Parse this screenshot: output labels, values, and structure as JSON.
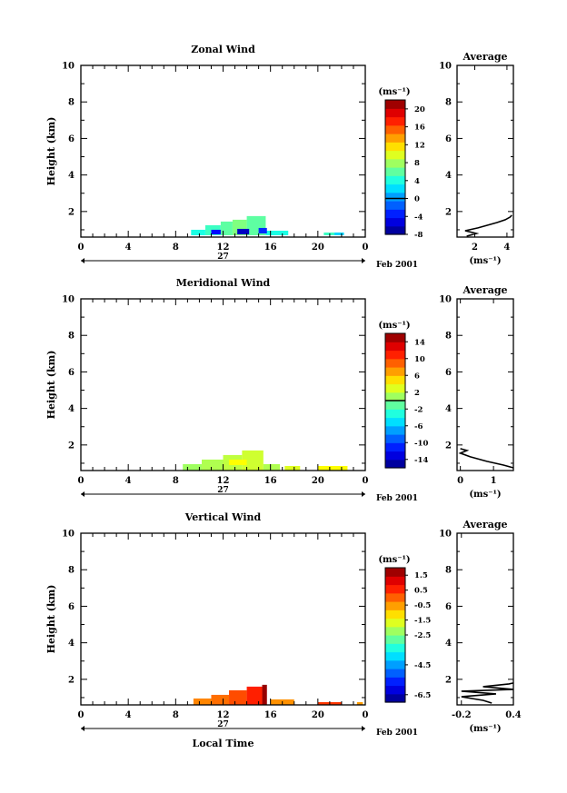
{
  "chart_data": [
    {
      "type": "heatmap",
      "title": "Zonal Wind",
      "xlabel": "",
      "ylabel": "Height (km)",
      "date_label": "27",
      "month_label": "Feb 2001",
      "xlim": [
        0,
        24
      ],
      "ylim": [
        0.6,
        10
      ],
      "x_ticks": [
        "0",
        "4",
        "8",
        "12",
        "16",
        "20",
        "0"
      ],
      "y_ticks": [
        "2",
        "4",
        "6",
        "8",
        "10"
      ],
      "colorbar": {
        "unit": "(ms⁻¹)",
        "range": [
          -8,
          22
        ],
        "tick_values": [
          -8,
          -4,
          0,
          4,
          8,
          12,
          16,
          20
        ],
        "tick_labels": [
          "-8",
          "-4",
          "0",
          "4",
          "8",
          "12",
          "16",
          "20"
        ],
        "zero_line": 0
      },
      "cells": [
        {
          "x0": 9.3,
          "x1": 10.5,
          "y0": 0.7,
          "y1": 1.0,
          "v": 4
        },
        {
          "x0": 10.5,
          "x1": 11.8,
          "y0": 0.7,
          "y1": 1.25,
          "v": 5
        },
        {
          "x0": 11.8,
          "x1": 12.8,
          "y0": 0.7,
          "y1": 1.45,
          "v": 6
        },
        {
          "x0": 12.8,
          "x1": 14.0,
          "y0": 0.7,
          "y1": 1.55,
          "v": 7
        },
        {
          "x0": 14.0,
          "x1": 15.6,
          "y0": 0.7,
          "y1": 1.75,
          "v": 6
        },
        {
          "x0": 15.6,
          "x1": 17.5,
          "y0": 0.7,
          "y1": 0.95,
          "v": 4
        },
        {
          "x0": 20.5,
          "x1": 21.4,
          "y0": 0.7,
          "y1": 0.85,
          "v": 5
        },
        {
          "x0": 21.4,
          "x1": 22.2,
          "y0": 0.7,
          "y1": 0.85,
          "v": 2
        },
        {
          "x0": 11.0,
          "x1": 11.8,
          "y0": 0.75,
          "y1": 1.0,
          "v": -4
        },
        {
          "x0": 13.2,
          "x1": 14.2,
          "y0": 0.75,
          "y1": 1.05,
          "v": -6
        },
        {
          "x0": 15.0,
          "x1": 15.7,
          "y0": 0.8,
          "y1": 1.1,
          "v": -3
        }
      ],
      "average": {
        "title": "Average",
        "xlabel": "(ms⁻¹)",
        "xlim": [
          0.9,
          4.4
        ],
        "x_ticks": [
          2,
          4
        ],
        "x_tick_labels": [
          "2",
          "4"
        ],
        "y_ticks": [
          "2",
          "4",
          "6",
          "8",
          "10"
        ],
        "profile": [
          [
            1.5,
            0.65
          ],
          [
            2.1,
            0.8
          ],
          [
            1.4,
            0.95
          ],
          [
            2.2,
            1.1
          ],
          [
            2.8,
            1.25
          ],
          [
            3.4,
            1.4
          ],
          [
            3.9,
            1.55
          ],
          [
            4.2,
            1.7
          ],
          [
            4.3,
            1.8
          ]
        ]
      }
    },
    {
      "type": "heatmap",
      "title": "Meridional Wind",
      "xlabel": "",
      "ylabel": "Height (km)",
      "date_label": "27",
      "month_label": "Feb 2001",
      "xlim": [
        0,
        24
      ],
      "ylim": [
        0.6,
        10
      ],
      "x_ticks": [
        "0",
        "4",
        "8",
        "12",
        "16",
        "20",
        "0"
      ],
      "y_ticks": [
        "2",
        "4",
        "6",
        "8",
        "10"
      ],
      "colorbar": {
        "unit": "(ms⁻¹)",
        "range": [
          -16,
          16
        ],
        "tick_values": [
          -14,
          -10,
          -6,
          -2,
          2,
          6,
          10,
          14
        ],
        "tick_labels": [
          "-14",
          "-10",
          "-6",
          "-2",
          "2",
          "6",
          "10",
          "14"
        ],
        "zero_line": 0
      },
      "cells": [
        {
          "x0": 8.6,
          "x1": 10.2,
          "y0": 0.6,
          "y1": 0.95,
          "v": 1
        },
        {
          "x0": 10.2,
          "x1": 12.0,
          "y0": 0.6,
          "y1": 1.2,
          "v": 1.5
        },
        {
          "x0": 12.0,
          "x1": 13.6,
          "y0": 0.6,
          "y1": 1.45,
          "v": 2
        },
        {
          "x0": 13.6,
          "x1": 15.4,
          "y0": 0.6,
          "y1": 1.7,
          "v": 2.5
        },
        {
          "x0": 15.4,
          "x1": 16.8,
          "y0": 0.6,
          "y1": 0.95,
          "v": 1.5
        },
        {
          "x0": 17.2,
          "x1": 18.5,
          "y0": 0.6,
          "y1": 0.85,
          "v": 3
        },
        {
          "x0": 20.0,
          "x1": 22.5,
          "y0": 0.6,
          "y1": 0.85,
          "v": 4
        },
        {
          "x0": 12.5,
          "x1": 14.0,
          "y0": 0.9,
          "y1": 1.2,
          "v": 4
        }
      ],
      "average": {
        "title": "Average",
        "xlabel": "(ms⁻¹)",
        "xlim": [
          -0.1,
          1.6
        ],
        "x_ticks": [
          0,
          1
        ],
        "x_tick_labels": [
          "0",
          "1"
        ],
        "y_ticks": [
          "2",
          "4",
          "6",
          "8",
          "10"
        ],
        "profile": [
          [
            1.6,
            0.75
          ],
          [
            1.3,
            0.9
          ],
          [
            0.8,
            1.1
          ],
          [
            0.3,
            1.35
          ],
          [
            0.0,
            1.55
          ],
          [
            0.2,
            1.7
          ],
          [
            0.0,
            1.8
          ]
        ]
      }
    },
    {
      "type": "heatmap",
      "title": "Vertical Wind",
      "xlabel": "Local Time",
      "ylabel": "Height (km)",
      "date_label": "27",
      "month_label": "Feb 2001",
      "xlim": [
        0,
        24
      ],
      "ylim": [
        0.6,
        10
      ],
      "x_ticks": [
        "0",
        "4",
        "8",
        "12",
        "16",
        "20",
        "0"
      ],
      "y_ticks": [
        "2",
        "4",
        "6",
        "8",
        "10"
      ],
      "colorbar": {
        "unit": "(ms⁻¹)",
        "range": [
          -7.0,
          2.0
        ],
        "tick_values": [
          -6.5,
          -4.5,
          -2.5,
          -1.5,
          -0.5,
          0.5,
          1.5
        ],
        "tick_labels": [
          "-6.5",
          "-4.5",
          "-2.5",
          "-1.5",
          "-0.5",
          "0.5",
          "1.5"
        ],
        "zero_line": null
      },
      "cells": [
        {
          "x0": 9.5,
          "x1": 11.0,
          "y0": 0.6,
          "y1": 0.95,
          "v": -0.3
        },
        {
          "x0": 11.0,
          "x1": 12.5,
          "y0": 0.6,
          "y1": 1.15,
          "v": -0.1
        },
        {
          "x0": 12.5,
          "x1": 14.0,
          "y0": 0.6,
          "y1": 1.4,
          "v": 0.2
        },
        {
          "x0": 14.0,
          "x1": 15.3,
          "y0": 0.6,
          "y1": 1.6,
          "v": 0.6
        },
        {
          "x0": 15.3,
          "x1": 15.7,
          "y0": 0.6,
          "y1": 1.7,
          "v": 1.8
        },
        {
          "x0": 16.0,
          "x1": 18.0,
          "y0": 0.6,
          "y1": 0.9,
          "v": -0.4
        },
        {
          "x0": 20.0,
          "x1": 22.0,
          "y0": 0.6,
          "y1": 0.75,
          "v": 0.4
        },
        {
          "x0": 23.3,
          "x1": 23.8,
          "y0": 0.6,
          "y1": 0.75,
          "v": -0.5
        }
      ],
      "average": {
        "title": "Average",
        "xlabel": "(ms⁻¹)",
        "xlim": [
          -0.25,
          0.4
        ],
        "x_ticks": [
          -0.2,
          0.4
        ],
        "x_tick_labels": [
          "-0.2",
          "0.4"
        ],
        "y_ticks": [
          "2",
          "4",
          "6",
          "8",
          "10"
        ],
        "profile": [
          [
            0.15,
            0.7
          ],
          [
            0.05,
            0.85
          ],
          [
            -0.2,
            1.05
          ],
          [
            0.2,
            1.2
          ],
          [
            -0.2,
            1.35
          ],
          [
            0.4,
            1.45
          ],
          [
            0.05,
            1.6
          ],
          [
            0.35,
            1.75
          ],
          [
            0.4,
            1.8
          ]
        ]
      }
    }
  ]
}
